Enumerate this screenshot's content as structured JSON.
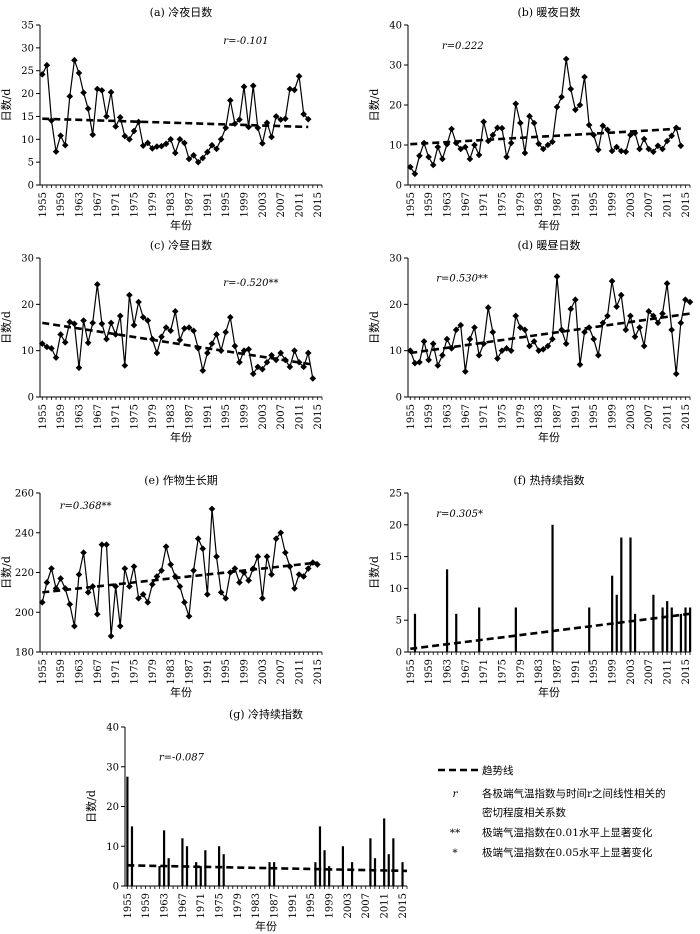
{
  "legend": {
    "trend_label": "趋势线",
    "r_symbol": "r",
    "r_desc_line1": "各极端气温指数与时间r之间线性相关的",
    "r_desc_line2": "密切程度相关系数",
    "sig_001_symbol": "**",
    "sig_001_desc": "极端气温指数在0.01水平上显著变化",
    "sig_005_symbol": "*",
    "sig_005_desc": "极端气温指数在0.05水平上显著变化"
  },
  "chart_data": [
    {
      "id": "a",
      "type": "line",
      "title": "(a) 冷夜日数",
      "xlabel": "年份",
      "ylabel": "日数/d",
      "ylim": [
        0,
        35
      ],
      "yticks": [
        0,
        5,
        10,
        15,
        20,
        25,
        30,
        35
      ],
      "r_text": "r=-0.101",
      "x_start": 1955,
      "xticks": [
        "1955",
        "1959",
        "1963",
        "1967",
        "1971",
        "1975",
        "1979",
        "1983",
        "1987",
        "1991",
        "1995",
        "1999",
        "2003",
        "2007",
        "2011",
        "2015"
      ],
      "values": [
        24.2,
        26.2,
        14.1,
        7.3,
        10.8,
        8.7,
        19.4,
        27.3,
        24.5,
        20.2,
        16.7,
        11.0,
        21.0,
        20.7,
        15.0,
        20.3,
        12.8,
        14.8,
        10.7,
        10.0,
        11.8,
        13.8,
        8.6,
        9.2,
        8.0,
        8.4,
        8.5,
        9.0,
        10.0,
        7.0,
        10.0,
        9.2,
        5.7,
        6.5,
        5.0,
        5.9,
        7.2,
        8.7,
        7.9,
        10.0,
        12.5,
        18.5,
        13.4,
        14.3,
        21.5,
        12.7,
        21.7,
        12.5,
        9.1,
        13.6,
        10.5,
        15.0,
        14.3,
        14.5,
        21.0,
        20.8,
        23.8,
        15.5,
        14.4
      ],
      "trend": [
        14.5,
        12.7
      ]
    },
    {
      "id": "b",
      "type": "line",
      "title": "(b) 暖夜日数",
      "xlabel": "年份",
      "ylabel": "日数/d",
      "ylim": [
        0,
        40
      ],
      "yticks": [
        0,
        10,
        20,
        30,
        40
      ],
      "r_text": "r=0.222",
      "x_start": 1955,
      "xticks": [
        "1955",
        "1959",
        "1963",
        "1967",
        "1971",
        "1975",
        "1979",
        "1983",
        "1987",
        "1991",
        "1995",
        "1999",
        "2003",
        "2007",
        "2011",
        "2015"
      ],
      "values": [
        4.5,
        2.8,
        7.3,
        10.5,
        7.0,
        5.0,
        9.5,
        6.5,
        10.2,
        14.0,
        10.5,
        9.0,
        9.5,
        6.5,
        10.0,
        7.5,
        15.8,
        11.0,
        12.5,
        14.3,
        14.2,
        7.0,
        10.5,
        20.3,
        15.5,
        8.0,
        17.2,
        15.5,
        10.3,
        9.0,
        10.0,
        10.8,
        19.5,
        22.0,
        31.5,
        24.0,
        18.8,
        20.0,
        27.0,
        15.0,
        12.5,
        8.8,
        14.8,
        13.8,
        8.5,
        9.5,
        8.5,
        8.3,
        12.5,
        13.0,
        9.0,
        11.5,
        9.0,
        8.3,
        9.8,
        9.0,
        11.0,
        12.3,
        14.3,
        9.8
      ],
      "trend": [
        10.2,
        14.1
      ]
    },
    {
      "id": "c",
      "type": "line",
      "title": "(c) 冷昼日数",
      "xlabel": "年份",
      "ylabel": "日数/d",
      "ylim": [
        0,
        30
      ],
      "yticks": [
        0,
        10,
        20,
        30
      ],
      "r_text": "r=-0.520**",
      "x_start": 1955,
      "xticks": [
        "1955",
        "1959",
        "1963",
        "1967",
        "1971",
        "1975",
        "1979",
        "1983",
        "1987",
        "1991",
        "1995",
        "1999",
        "2003",
        "2007",
        "2011",
        "2015"
      ],
      "values": [
        11.5,
        10.8,
        10.5,
        8.5,
        13.5,
        11.8,
        16.2,
        15.8,
        6.3,
        16.5,
        11.7,
        16.0,
        24.3,
        15.8,
        12.5,
        16.0,
        13.5,
        17.5,
        6.8,
        22.0,
        15.5,
        20.5,
        17.2,
        16.5,
        12.5,
        9.5,
        13.0,
        15.0,
        14.3,
        18.5,
        12.3,
        14.8,
        15.0,
        14.3,
        10.5,
        5.7,
        9.5,
        11.5,
        13.5,
        10.0,
        14.0,
        17.2,
        11.0,
        7.5,
        10.0,
        10.3,
        5.0,
        6.5,
        6.0,
        7.5,
        9.0,
        8.0,
        9.5,
        8.0,
        6.5,
        10.0,
        7.5,
        6.5,
        9.5,
        4.0
      ],
      "trend": [
        16.0,
        7.0
      ]
    },
    {
      "id": "d",
      "type": "line",
      "title": "(d) 暖昼日数",
      "xlabel": "年份",
      "ylabel": "日数/d",
      "ylim": [
        0,
        30
      ],
      "yticks": [
        0,
        10,
        20,
        30
      ],
      "r_text": "r=0.530**",
      "x_start": 1955,
      "xticks": [
        "1955",
        "1959",
        "1963",
        "1967",
        "1971",
        "1975",
        "1979",
        "1983",
        "1987",
        "1991",
        "1995",
        "1999",
        "2003",
        "2007",
        "2011",
        "2015"
      ],
      "values": [
        10.0,
        7.3,
        7.5,
        12.0,
        8.0,
        11.5,
        6.8,
        9.0,
        12.5,
        10.5,
        14.5,
        15.5,
        5.5,
        12.5,
        15.0,
        9.0,
        11.5,
        19.3,
        14.0,
        8.3,
        10.0,
        10.5,
        10.0,
        17.5,
        15.0,
        14.5,
        11.0,
        12.0,
        10.0,
        10.3,
        11.0,
        12.5,
        26.0,
        14.5,
        11.5,
        19.0,
        21.0,
        7.0,
        14.0,
        15.0,
        12.5,
        9.0,
        16.0,
        17.5,
        25.0,
        19.5,
        22.0,
        14.5,
        17.5,
        13.0,
        15.0,
        11.0,
        18.5,
        17.5,
        16.0,
        18.0,
        24.5,
        14.5,
        5.0,
        16.0,
        21.0,
        20.5
      ],
      "trend": [
        9.5,
        18.0
      ]
    },
    {
      "id": "e",
      "type": "line",
      "title": "(e) 作物生长期",
      "xlabel": "年份",
      "ylabel": "日数/d",
      "ylim": [
        180,
        260
      ],
      "yticks": [
        180,
        200,
        220,
        240,
        260
      ],
      "r_text": "r=0.368**",
      "x_start": 1955,
      "xticks": [
        "1955",
        "1959",
        "1963",
        "1967",
        "1971",
        "1975",
        "1979",
        "1983",
        "1987",
        "1991",
        "1995",
        "1999",
        "2003",
        "2007",
        "2011",
        "2015"
      ],
      "values": [
        205,
        215,
        222,
        212,
        217,
        212,
        204,
        193,
        219,
        230,
        210,
        213,
        199,
        234,
        234,
        188,
        213,
        193,
        222,
        213,
        223,
        207,
        209,
        205,
        214,
        218,
        221,
        233,
        224,
        218,
        213,
        205,
        198,
        221,
        237,
        232,
        209,
        252,
        228,
        210,
        207,
        220,
        222,
        215,
        220,
        216,
        222,
        228,
        207,
        228,
        219,
        237,
        240,
        230,
        223,
        212,
        219,
        218,
        222,
        225,
        224
      ],
      "trend": [
        210.0,
        225.0
      ]
    },
    {
      "id": "f",
      "type": "bar",
      "title": "(f) 热持续指数",
      "xlabel": "年份",
      "ylabel": "日数/d",
      "ylim": [
        0,
        25
      ],
      "yticks": [
        0,
        5,
        10,
        15,
        20,
        25
      ],
      "r_text": "r=0.305*",
      "x_start": 1955,
      "xticks": [
        "1955",
        "1959",
        "1963",
        "1967",
        "1971",
        "1975",
        "1979",
        "1983",
        "1987",
        "1991",
        "1995",
        "1999",
        "2003",
        "2007",
        "2011",
        "2015"
      ],
      "bars": [
        {
          "x": 1956,
          "v": 6
        },
        {
          "x": 1963,
          "v": 13
        },
        {
          "x": 1965,
          "v": 6
        },
        {
          "x": 1970,
          "v": 7
        },
        {
          "x": 1978,
          "v": 7
        },
        {
          "x": 1986,
          "v": 20
        },
        {
          "x": 1994,
          "v": 7
        },
        {
          "x": 1999,
          "v": 12
        },
        {
          "x": 2000,
          "v": 9
        },
        {
          "x": 2001,
          "v": 18
        },
        {
          "x": 2003,
          "v": 18
        },
        {
          "x": 2004,
          "v": 6
        },
        {
          "x": 2008,
          "v": 9
        },
        {
          "x": 2010,
          "v": 7
        },
        {
          "x": 2011,
          "v": 8
        },
        {
          "x": 2012,
          "v": 7
        },
        {
          "x": 2014,
          "v": 6
        },
        {
          "x": 2015,
          "v": 7
        },
        {
          "x": 2016,
          "v": 7
        }
      ],
      "trend": [
        0.5,
        6.0
      ]
    },
    {
      "id": "g",
      "type": "bar",
      "title": "(g) 冷持续指数",
      "xlabel": "年份",
      "ylabel": "日数/d",
      "ylim": [
        0,
        40
      ],
      "yticks": [
        0,
        10,
        20,
        30,
        40
      ],
      "r_text": "r=-0.087",
      "x_start": 1955,
      "xticks": [
        "1955",
        "1959",
        "1963",
        "1967",
        "1971",
        "1975",
        "1979",
        "1983",
        "1987",
        "1991",
        "1995",
        "1999",
        "2003",
        "2007",
        "2011",
        "2015"
      ],
      "bars": [
        {
          "x": 1955,
          "v": 27.5
        },
        {
          "x": 1956,
          "v": 15
        },
        {
          "x": 1962,
          "v": 5
        },
        {
          "x": 1963,
          "v": 14
        },
        {
          "x": 1964,
          "v": 7
        },
        {
          "x": 1967,
          "v": 12
        },
        {
          "x": 1968,
          "v": 10
        },
        {
          "x": 1970,
          "v": 6
        },
        {
          "x": 1971,
          "v": 5
        },
        {
          "x": 1972,
          "v": 9
        },
        {
          "x": 1975,
          "v": 10
        },
        {
          "x": 1976,
          "v": 8
        },
        {
          "x": 1986,
          "v": 6
        },
        {
          "x": 1987,
          "v": 6
        },
        {
          "x": 1996,
          "v": 6
        },
        {
          "x": 1997,
          "v": 15
        },
        {
          "x": 1998,
          "v": 9
        },
        {
          "x": 1999,
          "v": 5
        },
        {
          "x": 2002,
          "v": 10
        },
        {
          "x": 2004,
          "v": 6
        },
        {
          "x": 2008,
          "v": 12
        },
        {
          "x": 2009,
          "v": 7
        },
        {
          "x": 2011,
          "v": 17
        },
        {
          "x": 2012,
          "v": 8
        },
        {
          "x": 2013,
          "v": 12
        },
        {
          "x": 2015,
          "v": 6
        }
      ],
      "trend": [
        5.2,
        3.8
      ]
    }
  ]
}
